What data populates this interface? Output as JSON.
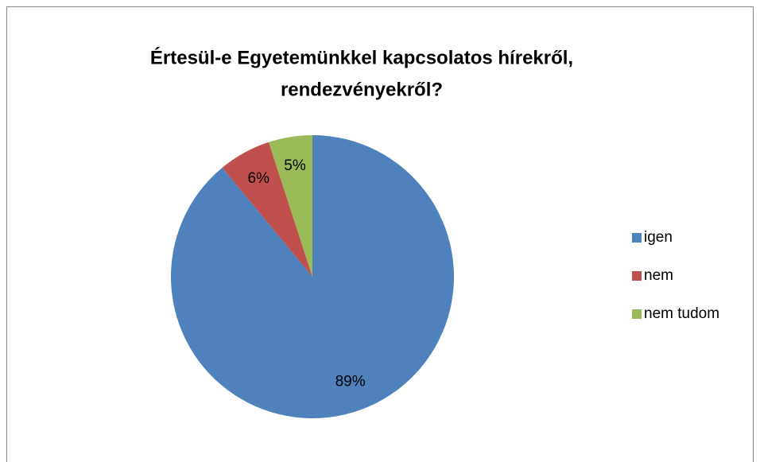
{
  "chart_data": {
    "type": "pie",
    "title": [
      "Értesül-e Egyetemünkkel kapcsolatos hírekről,",
      "rendezvényekről?"
    ],
    "categories": [
      "igen",
      "nem",
      "nem tudom"
    ],
    "values": [
      89,
      6,
      5
    ],
    "value_labels": [
      "89%",
      "6%",
      "5%"
    ],
    "colors": [
      "#4f81bd",
      "#c0504d",
      "#9bbb59"
    ],
    "legend": "right"
  }
}
